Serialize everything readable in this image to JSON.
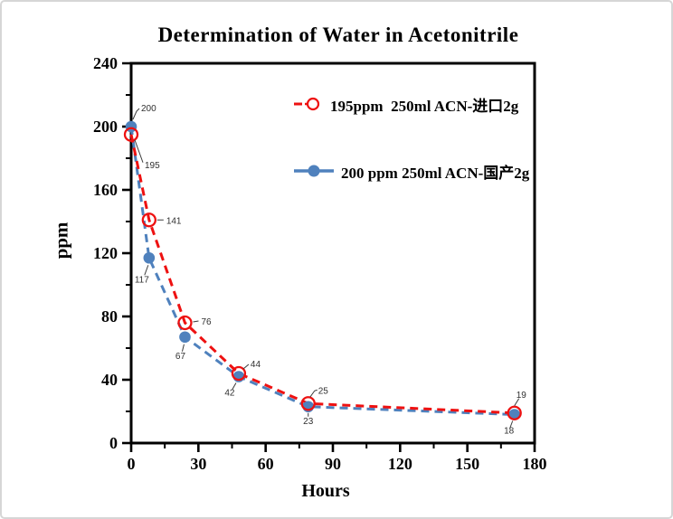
{
  "page": {
    "background": "#ffffff",
    "border_color": "#d6d6d6"
  },
  "chart_data": {
    "type": "line",
    "title": "Determination of Water in Acetonitrile",
    "xlabel": "Hours",
    "ylabel": "ppm",
    "xlim": [
      0,
      180
    ],
    "ylim": [
      0,
      240
    ],
    "x_major_ticks": [
      0,
      30,
      60,
      90,
      120,
      150,
      180
    ],
    "x_minor_step": 15,
    "y_major_ticks": [
      0,
      40,
      80,
      120,
      160,
      200,
      240
    ],
    "y_minor_step": 20,
    "grid": false,
    "legend_position": "inside-upper-right",
    "series": [
      {
        "name": "195ppm  250ml ACN-进口2g",
        "color": "#ee1111",
        "marker": "open-circle",
        "line_style": "dashed",
        "x": [
          0,
          8,
          24,
          48,
          79,
          171
        ],
        "y": [
          195,
          141,
          76,
          44,
          25,
          19
        ],
        "point_labels": [
          "195",
          "141",
          "76",
          "44",
          "25",
          "19"
        ]
      },
      {
        "name": "200 ppm 250ml ACN-国产2g",
        "color": "#4f81bd",
        "marker": "filled-circle",
        "line_style": "dashed",
        "x": [
          0,
          8,
          24,
          48,
          79,
          171
        ],
        "y": [
          200,
          117,
          67,
          42,
          23,
          18
        ],
        "point_labels": [
          "200",
          "117",
          "67",
          "42",
          "23",
          "18"
        ]
      }
    ]
  }
}
